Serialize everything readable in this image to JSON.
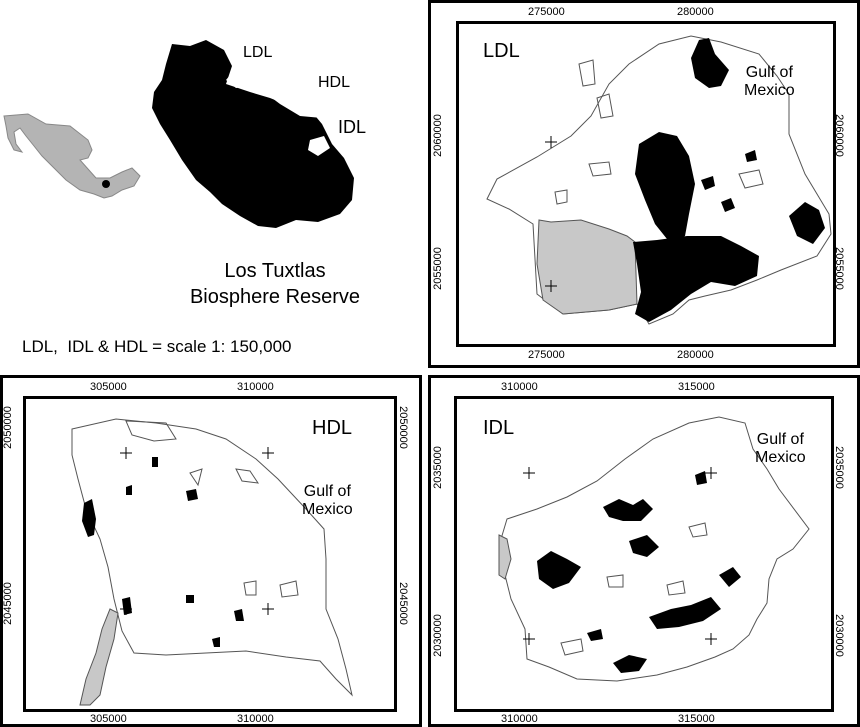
{
  "overview": {
    "title_line1": "Los Tuxtlas",
    "title_line2": "Biosphere Reserve",
    "label_ldl": "LDL",
    "label_hdl": "HDL",
    "label_idl": "IDL",
    "scale_note": "LDL,  IDL & HDL = scale 1: 150,000"
  },
  "panels": {
    "ldl": {
      "name": "LDL",
      "gulf": [
        "Gulf of",
        "Mexico"
      ],
      "x_ticks": [
        "275000",
        "280000"
      ],
      "y_ticks": [
        "2060000",
        "2055000"
      ]
    },
    "hdl": {
      "name": "HDL",
      "gulf": [
        "Gulf of",
        "Mexico"
      ],
      "x_ticks": [
        "305000",
        "310000"
      ],
      "y_ticks": [
        "2050000",
        "2045000"
      ]
    },
    "idl": {
      "name": "IDL",
      "gulf": [
        "Gulf of",
        "Mexico"
      ],
      "x_ticks": [
        "310000",
        "315000"
      ],
      "y_ticks": [
        "2035000",
        "2030000"
      ]
    }
  },
  "colors": {
    "forest": "#000000",
    "boundary": "#555555",
    "stipple": "#c8c8c8",
    "mexico": "#b4b4b4"
  }
}
